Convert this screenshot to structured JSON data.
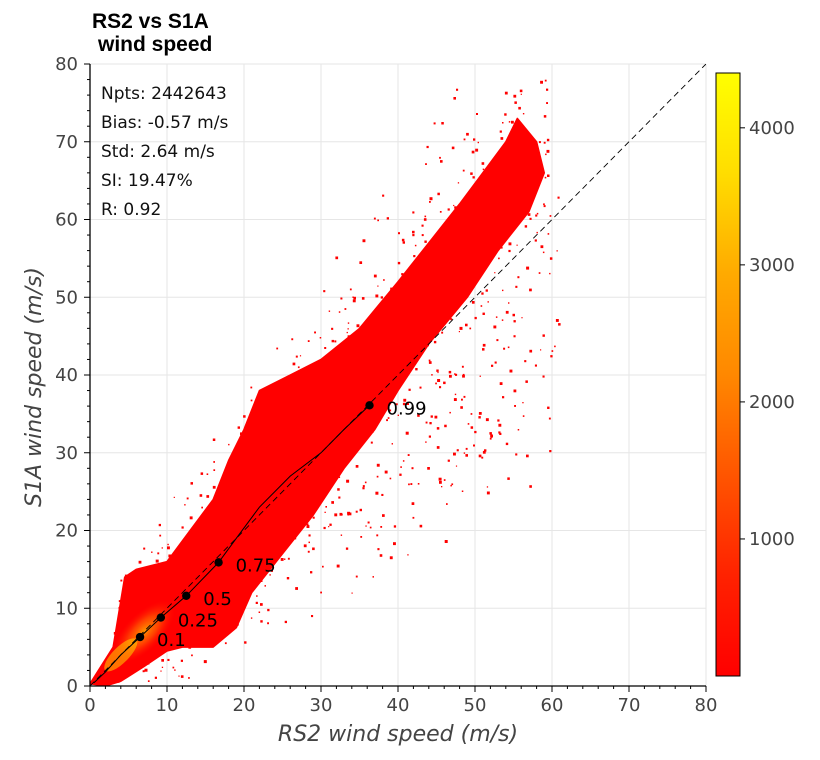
{
  "chart_data": {
    "type": "heatmap",
    "title_lines": [
      "RS2 vs S1A",
      "wind speed"
    ],
    "xlabel": "RS2 wind speed (m/s)",
    "ylabel": "S1A wind speed (m/s)",
    "xlim": [
      0,
      80
    ],
    "ylim": [
      0,
      80
    ],
    "xticks": [
      0,
      10,
      20,
      30,
      40,
      50,
      60,
      70,
      80
    ],
    "yticks": [
      0,
      10,
      20,
      30,
      40,
      50,
      60,
      70,
      80
    ],
    "grid": true,
    "stats": [
      "Npts: 2442643",
      "Bias: -0.57 m/s",
      "Std: 2.64 m/s",
      "SI: 19.47%",
      "R: 0.92"
    ],
    "identity_line": {
      "x": [
        0,
        80
      ],
      "y": [
        0,
        80
      ],
      "style": "dashed",
      "color": "#000000"
    },
    "trend_line": {
      "x": [
        0.5,
        2,
        4,
        6.5,
        9.2,
        12.5,
        16.7,
        19,
        22,
        26,
        30,
        33,
        36.3
      ],
      "y": [
        0.4,
        1.8,
        4,
        6.3,
        8.8,
        11.6,
        15.9,
        19,
        23,
        27,
        30,
        33,
        36.1
      ]
    },
    "quantile_points": [
      {
        "label": "0.1",
        "x": 6.5,
        "y": 6.3
      },
      {
        "label": "0.25",
        "x": 9.2,
        "y": 8.8
      },
      {
        "label": "0.5",
        "x": 12.5,
        "y": 11.6
      },
      {
        "label": "0.75",
        "x": 16.7,
        "y": 15.9
      },
      {
        "label": "0.99",
        "x": 36.3,
        "y": 36.1
      }
    ],
    "density_envelope": {
      "upper": [
        [
          0,
          0.3
        ],
        [
          3,
          5
        ],
        [
          4.5,
          14
        ],
        [
          6,
          15
        ],
        [
          10,
          16
        ],
        [
          13,
          20
        ],
        [
          16,
          24
        ],
        [
          18,
          29
        ],
        [
          20,
          33
        ],
        [
          22,
          38
        ],
        [
          26,
          40
        ],
        [
          30,
          42
        ],
        [
          35,
          46
        ],
        [
          40,
          52
        ],
        [
          44,
          57
        ],
        [
          48,
          62
        ],
        [
          51,
          66
        ],
        [
          54,
          70
        ],
        [
          55.5,
          73
        ]
      ],
      "lower": [
        [
          55.5,
          73
        ],
        [
          58,
          70
        ],
        [
          59,
          66
        ],
        [
          57,
          61
        ],
        [
          53,
          56
        ],
        [
          49,
          50
        ],
        [
          44,
          44
        ],
        [
          40,
          38
        ],
        [
          37,
          33
        ],
        [
          33,
          28
        ],
        [
          29,
          22
        ],
        [
          25,
          17
        ],
        [
          21,
          12
        ],
        [
          19,
          7.5
        ],
        [
          16,
          5
        ],
        [
          12,
          5
        ],
        [
          10,
          4.5
        ],
        [
          7,
          2.5
        ],
        [
          4,
          0.6
        ],
        [
          2,
          0
        ]
      ]
    },
    "colorbar": {
      "colors": [
        "#ff0000",
        "#ff2200",
        "#ff5500",
        "#ff8800",
        "#ffaa00",
        "#ffdd00",
        "#ffff00"
      ],
      "range": [
        0,
        4400
      ],
      "ticks": [
        1000,
        2000,
        3000,
        4000
      ]
    }
  }
}
